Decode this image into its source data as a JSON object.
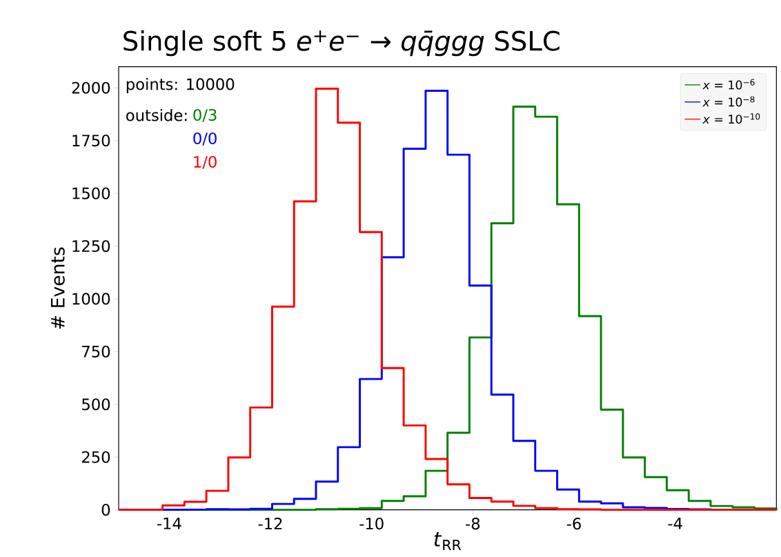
{
  "chart_data": {
    "type": "histogram",
    "title": "Single soft  5   *e*$^{+}$*e*$^{−}$ → *qq̄ggg* SSLC",
    "xlabel": "*t*$_{RR}$",
    "ylabel": "# Events",
    "bins": [
      -15,
      -14.567,
      -14.133,
      -13.7,
      -13.267,
      -12.833,
      -12.4,
      -11.967,
      -11.533,
      -11.1,
      -10.667,
      -10.233,
      -9.8,
      -9.367,
      -8.933,
      -8.5,
      -8.067,
      -7.633,
      -7.2,
      -6.767,
      -6.333,
      -5.9,
      -5.467,
      -5.033,
      -4.6,
      -4.167,
      -3.733,
      -3.3,
      -2.867,
      -2.433,
      -2
    ],
    "series": [
      {
        "name": "*x* = 10$^{−6}$",
        "color": "#008000",
        "values": [
          0,
          0,
          0,
          0,
          0,
          0,
          0,
          0,
          0,
          3,
          5,
          8,
          42,
          64,
          185,
          365,
          817,
          1358,
          1911,
          1863,
          1448,
          918,
          475,
          248,
          155,
          93,
          42,
          18,
          12,
          6
        ]
      },
      {
        "name": "*x* = 10$^{−8}$",
        "color": "#0000ff",
        "values": [
          0,
          0,
          0,
          1,
          3,
          2,
          5,
          28,
          52,
          134,
          297,
          620,
          1197,
          1711,
          1986,
          1683,
          1063,
          546,
          327,
          185,
          96,
          39,
          31,
          12,
          9,
          4,
          2,
          0,
          0,
          0
        ]
      },
      {
        "name": "*x* = 10$^{−10}$",
        "color": "#ff0000",
        "values": [
          0,
          0,
          21,
          38,
          90,
          248,
          485,
          963,
          1462,
          1996,
          1835,
          1316,
          672,
          400,
          241,
          121,
          56,
          39,
          19,
          8,
          3,
          2,
          0,
          0,
          0,
          0,
          0,
          0,
          0,
          0
        ]
      }
    ],
    "xlim": [
      -15,
      -2
    ],
    "ylim": [
      0,
      2100
    ],
    "xticks": [
      -14,
      -12,
      -10,
      -8,
      -6,
      -4
    ],
    "yticks": [
      0,
      250,
      500,
      750,
      1000,
      1250,
      1500,
      1750,
      2000
    ],
    "legend": "top right",
    "annotations": [
      "points: 10000",
      "outside:",
      "0/3",
      "0/0",
      "1/0"
    ]
  }
}
